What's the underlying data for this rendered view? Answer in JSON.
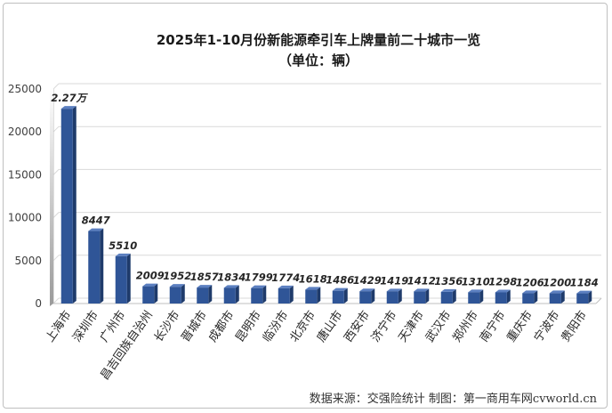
{
  "chart_data": {
    "type": "bar",
    "title": "2025年1-10月份新能源牵引车上牌量前二十城市一览",
    "subtitle": "（单位：辆）",
    "categories": [
      "上海市",
      "深圳市",
      "广州市",
      "昌吉回族自治州",
      "长沙市",
      "晋城市",
      "成都市",
      "昆明市",
      "临汾市",
      "北京市",
      "唐山市",
      "西安市",
      "济宁市",
      "天津市",
      "武汉市",
      "郑州市",
      "南宁市",
      "重庆市",
      "宁波市",
      "贵阳市"
    ],
    "values": [
      22700,
      8447,
      5510,
      2009,
      1952,
      1857,
      1834,
      1799,
      1774,
      1618,
      1486,
      1429,
      1419,
      1412,
      1356,
      1310,
      1298,
      1206,
      1200,
      1184
    ],
    "data_labels": [
      "2.27万",
      "8447",
      "5510",
      "2009",
      "1952",
      "1857",
      "1834",
      "1799",
      "1774",
      "1618",
      "1486",
      "1429",
      "1419",
      "1412",
      "1356",
      "1310",
      "1298",
      "1206",
      "1200",
      "1184"
    ],
    "ylim": [
      0,
      25000
    ],
    "yticks": [
      0,
      5000,
      10000,
      15000,
      20000,
      25000
    ],
    "grid": true,
    "legend": "none",
    "bar_color": "#2f5597",
    "source": "数据来源：交强险统计  制图：第一商用车网cvworld.cn"
  }
}
